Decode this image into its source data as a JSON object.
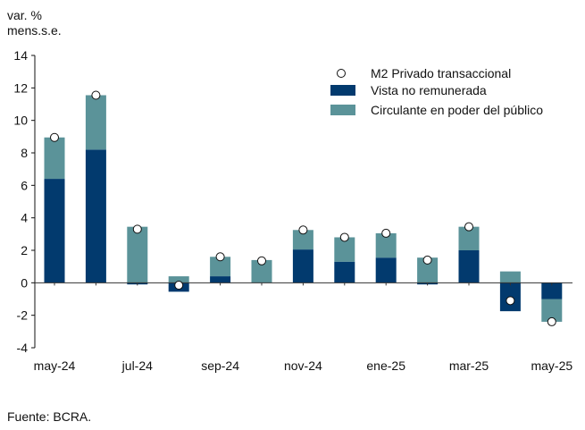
{
  "chart_data": {
    "type": "bar",
    "stacked": true,
    "ylabel_lines": [
      "var. %",
      "mens.s.e."
    ],
    "ylim": [
      -4,
      14
    ],
    "yticks": [
      -4,
      -2,
      0,
      2,
      4,
      6,
      8,
      10,
      12,
      14
    ],
    "categories": [
      "may-24",
      "jun-24",
      "jul-24",
      "ago-24",
      "sep-24",
      "oct-24",
      "nov-24",
      "dic-24",
      "ene-25",
      "feb-25",
      "mar-25",
      "abr-25",
      "may-25"
    ],
    "xtick_labels": [
      "may-24",
      "",
      "jul-24",
      "",
      "sep-24",
      "",
      "nov-24",
      "",
      "ene-25",
      "",
      "mar-25",
      "",
      "may-25"
    ],
    "series": [
      {
        "name": "Vista no remunerada",
        "kind": "bar",
        "color": "#023a6e",
        "values": [
          6.4,
          8.2,
          -0.1,
          -0.55,
          0.4,
          0.0,
          2.05,
          1.3,
          1.55,
          -0.1,
          2.0,
          -1.75,
          -1.0
        ]
      },
      {
        "name": "Circulante en poder del público",
        "kind": "bar",
        "color": "#5b9399",
        "values": [
          2.55,
          3.35,
          3.45,
          0.4,
          1.2,
          1.4,
          1.2,
          1.5,
          1.5,
          1.55,
          1.45,
          0.7,
          -1.4
        ]
      },
      {
        "name": "M2 Privado transaccional",
        "kind": "marker",
        "values": [
          8.95,
          11.55,
          3.3,
          -0.15,
          1.6,
          1.35,
          3.25,
          2.8,
          3.05,
          1.4,
          3.45,
          -1.1,
          -2.4
        ]
      }
    ],
    "legend_position": "top-right",
    "grid": false
  },
  "source": "Fuente: BCRA."
}
